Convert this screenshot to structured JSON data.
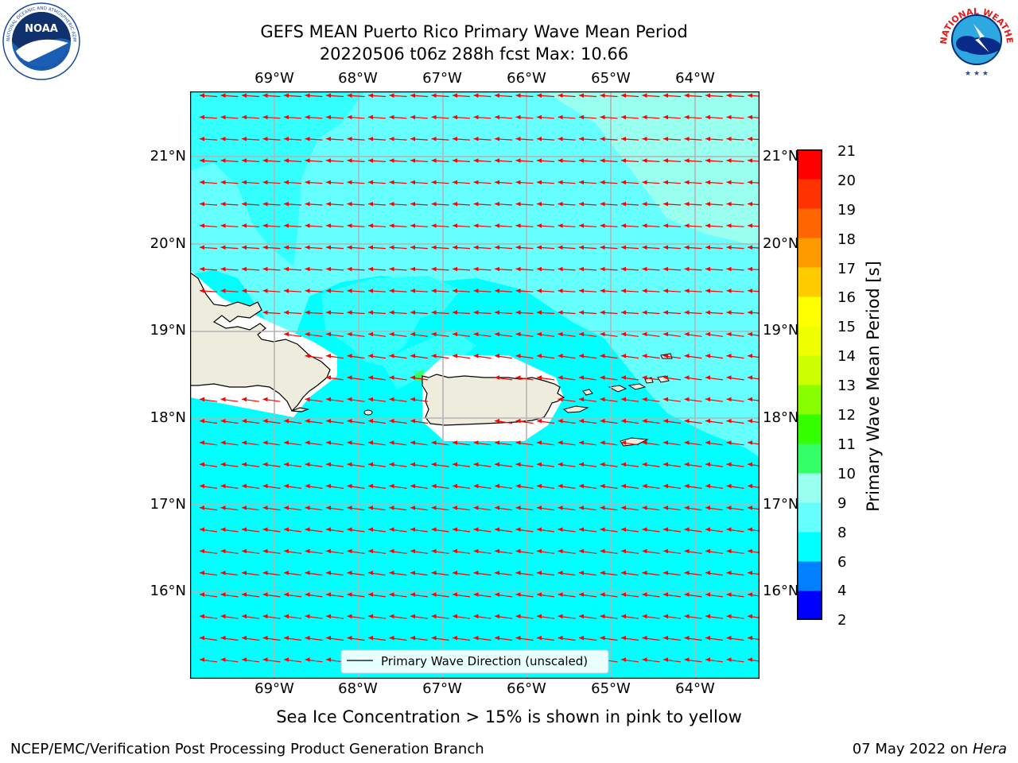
{
  "header": {
    "title_line1": "GEFS MEAN Puerto Rico Primary Wave Mean Period",
    "title_line2": "20220506 t06z 288h fcst   Max: 10.66"
  },
  "logos": {
    "noaa_text": "NOAA",
    "noaa_ring": "NATIONAL OCEANIC AND ATMOSPHERIC ADMINISTRATION",
    "noaa_ring_bottom": "U.S. DEPARTMENT OF COMMERCE",
    "nws_ring": "NATIONAL WEATHER SERVICE"
  },
  "map": {
    "lon_labels": [
      "69°W",
      "68°W",
      "67°W",
      "66°W",
      "65°W",
      "64°W"
    ],
    "lat_labels": [
      "21°N",
      "20°N",
      "19°N",
      "18°N",
      "17°N",
      "16°N"
    ],
    "legend_label": "Primary Wave Direction (unscaled)",
    "arrow_color": "#ff0000",
    "land_color": "#eeecdc"
  },
  "colorbar": {
    "title": "Primary Wave Mean Period [s]",
    "ticks": [
      "21",
      "20",
      "19",
      "18",
      "17",
      "16",
      "15",
      "14",
      "13",
      "12",
      "11",
      "10",
      "9",
      "8",
      "6",
      "4",
      "2"
    ],
    "colors": [
      "#0000ff",
      "#0080ff",
      "#00ffff",
      "#66ffff",
      "#99ffee",
      "#33ff66",
      "#33ff00",
      "#88ff00",
      "#ccff00",
      "#eeff00",
      "#ffff00",
      "#ffcc00",
      "#ff9900",
      "#ff6600",
      "#ff3300",
      "#ff0000"
    ]
  },
  "caption": "Sea Ice Concentration > 15% is shown in pink to yellow",
  "footer": {
    "left": "NCEP/EMC/Verification Post Processing Product Generation Branch",
    "right_prefix": "07 May 2022 on ",
    "right_host": "Hera"
  }
}
